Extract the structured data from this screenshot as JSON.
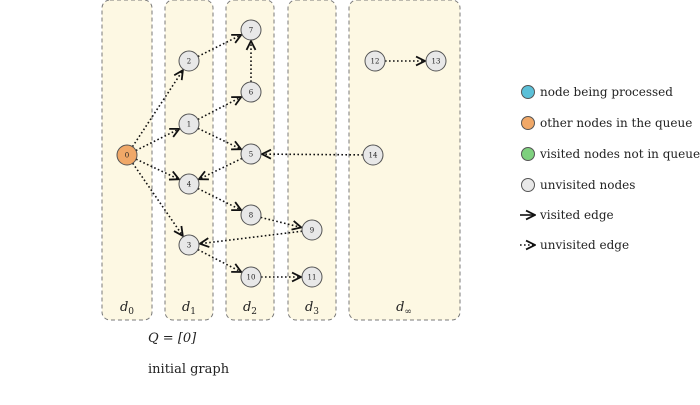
{
  "colors": {
    "processing": "#5bc0d8",
    "queue": "#f0a868",
    "visited": "#7ed07e",
    "unvisited": "#e8e8e8",
    "lane_fill": "#fdf8e3"
  },
  "lanes": [
    {
      "id": "d0",
      "base": "d",
      "sub": "0"
    },
    {
      "id": "d1",
      "base": "d",
      "sub": "1"
    },
    {
      "id": "d2",
      "base": "d",
      "sub": "2"
    },
    {
      "id": "d3",
      "base": "d",
      "sub": "3"
    },
    {
      "id": "dinf",
      "base": "d",
      "sub": "∞"
    }
  ],
  "nodes": [
    {
      "id": "0",
      "label": "0",
      "state": "queue"
    },
    {
      "id": "1",
      "label": "1",
      "state": "unvisited"
    },
    {
      "id": "2",
      "label": "2",
      "state": "unvisited"
    },
    {
      "id": "3",
      "label": "3",
      "state": "unvisited"
    },
    {
      "id": "4",
      "label": "4",
      "state": "unvisited"
    },
    {
      "id": "5",
      "label": "5",
      "state": "unvisited"
    },
    {
      "id": "6",
      "label": "6",
      "state": "unvisited"
    },
    {
      "id": "7",
      "label": "7",
      "state": "unvisited"
    },
    {
      "id": "8",
      "label": "8",
      "state": "unvisited"
    },
    {
      "id": "9",
      "label": "9",
      "state": "unvisited"
    },
    {
      "id": "10",
      "label": "10",
      "state": "unvisited"
    },
    {
      "id": "11",
      "label": "11",
      "state": "unvisited"
    },
    {
      "id": "12",
      "label": "12",
      "state": "unvisited"
    },
    {
      "id": "13",
      "label": "13",
      "state": "unvisited"
    },
    {
      "id": "14",
      "label": "14",
      "state": "unvisited"
    }
  ],
  "edges": [
    {
      "from": "0",
      "to": "2"
    },
    {
      "from": "0",
      "to": "1"
    },
    {
      "from": "0",
      "to": "4"
    },
    {
      "from": "0",
      "to": "3"
    },
    {
      "from": "2",
      "to": "7"
    },
    {
      "from": "1",
      "to": "6"
    },
    {
      "from": "1",
      "to": "5"
    },
    {
      "from": "6",
      "to": "7"
    },
    {
      "from": "5",
      "to": "4"
    },
    {
      "from": "4",
      "to": "8"
    },
    {
      "from": "8",
      "to": "9"
    },
    {
      "from": "9",
      "to": "3"
    },
    {
      "from": "3",
      "to": "10"
    },
    {
      "from": "10",
      "to": "11"
    },
    {
      "from": "14",
      "to": "5"
    },
    {
      "from": "12",
      "to": "13"
    }
  ],
  "legend": [
    {
      "kind": "circle",
      "state": "processing",
      "label": "node being processed"
    },
    {
      "kind": "circle",
      "state": "queue",
      "label": "other nodes in the queue"
    },
    {
      "kind": "circle",
      "state": "visited",
      "label": "visited nodes not in queue"
    },
    {
      "kind": "circle",
      "state": "unvisited",
      "label": "unvisited nodes"
    },
    {
      "kind": "solid-arrow",
      "label": "visited edge"
    },
    {
      "kind": "dotted-arrow",
      "label": "unvisited edge"
    }
  ],
  "queue_text": "Q = [0]",
  "caption": "initial graph"
}
